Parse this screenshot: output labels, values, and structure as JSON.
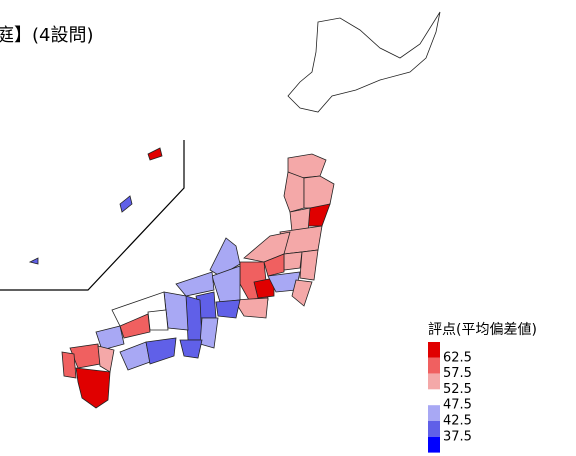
{
  "title": "庭】(4設問)",
  "legend": {
    "title": "評点(平均偏差値)",
    "breaks": [
      62.5,
      57.5,
      52.5,
      47.5,
      42.5,
      37.5
    ],
    "colors": [
      "#e00000",
      "#f06060",
      "#f4a8a8",
      "#ffffff",
      "#a8a8f4",
      "#6060e8",
      "#0000ff"
    ]
  }
}
